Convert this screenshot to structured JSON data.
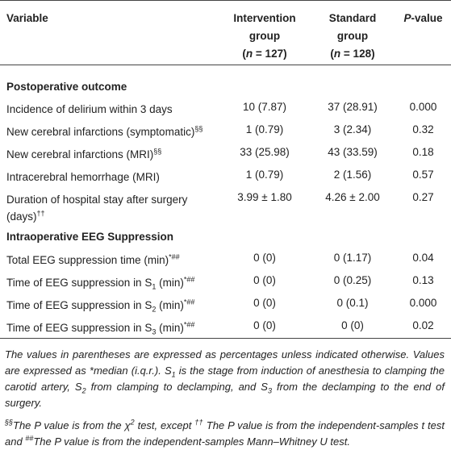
{
  "table": {
    "header": [
      [
        [
          "Variable"
        ]
      ],
      [
        [
          "Intervention group"
        ],
        [
          "(",
          {
            "text": "n",
            "style": "i"
          },
          " = 127)"
        ]
      ],
      [
        [
          "Standard group"
        ],
        [
          "(",
          {
            "text": "n",
            "style": "i"
          },
          " = 128)"
        ]
      ],
      [
        [
          {
            "text": "P",
            "style": "i"
          },
          "-value"
        ]
      ]
    ],
    "sections": [
      {
        "title": "Postoperative outcome",
        "rows": [
          [
            [
              "Incidence of delirium within 3 days"
            ],
            "10 (7.87)",
            "37 (28.91)",
            "0.000"
          ],
          [
            [
              "New cerebral infarctions (symptomatic)",
              {
                "text": "§§",
                "style": "sup"
              }
            ],
            "1 (0.79)",
            "3 (2.34)",
            "0.32"
          ],
          [
            [
              "New cerebral infarctions (MRI)",
              {
                "text": "§§",
                "style": "sup"
              }
            ],
            "33 (25.98)",
            "43 (33.59)",
            "0.18"
          ],
          [
            [
              "Intracerebral hemorrhage (MRI)"
            ],
            "1 (0.79)",
            "2 (1.56)",
            "0.57"
          ],
          [
            [
              "Duration of hospital stay after surgery (days)",
              {
                "text": "††",
                "style": "sup"
              }
            ],
            "3.99 ± 1.80",
            "4.26 ± 2.00",
            "0.27"
          ]
        ]
      },
      {
        "title": "Intraoperative EEG Suppression",
        "rows": [
          [
            [
              "Total EEG suppression time (min)",
              {
                "text": "*##",
                "style": "sup"
              }
            ],
            "0 (0)",
            "0 (1.17)",
            "0.04"
          ],
          [
            [
              "Time of EEG suppression in S",
              {
                "text": "1",
                "style": "sub"
              },
              " (min)",
              {
                "text": "*##",
                "style": "sup"
              }
            ],
            "0 (0)",
            "0 (0.25)",
            "0.13"
          ],
          [
            [
              "Time of EEG suppression in S",
              {
                "text": "2",
                "style": "sub"
              },
              " (min)",
              {
                "text": "*##",
                "style": "sup"
              }
            ],
            "0 (0)",
            "0 (0.1)",
            "0.000"
          ],
          [
            [
              "Time of EEG suppression in S",
              {
                "text": "3",
                "style": "sub"
              },
              " (min)",
              {
                "text": "*##",
                "style": "sup"
              }
            ],
            "0 (0)",
            "0 (0)",
            "0.02"
          ]
        ]
      }
    ],
    "footnotes": [
      [
        "The values in parentheses are expressed as percentages unless indicated otherwise. Values are expressed as *median (i.q.r.). S",
        {
          "text": "1",
          "style": "sub"
        },
        " is the stage from induction of anesthesia to clamping the carotid artery, S",
        {
          "text": "2",
          "style": "sub"
        },
        " from clamping to declamping, and S",
        {
          "text": "3",
          "style": "sub"
        },
        " from the declamping to the end of surgery."
      ],
      [
        {
          "text": "§§",
          "style": "sup"
        },
        "The P value is from the χ",
        {
          "text": "2",
          "style": "sup"
        },
        " test, except ",
        {
          "text": "††",
          "style": "sup"
        },
        " The P value is from the independent-samples t test and ",
        {
          "text": "##",
          "style": "sup"
        },
        "The P value is from the independent-samples Mann–Whitney U test."
      ]
    ]
  }
}
